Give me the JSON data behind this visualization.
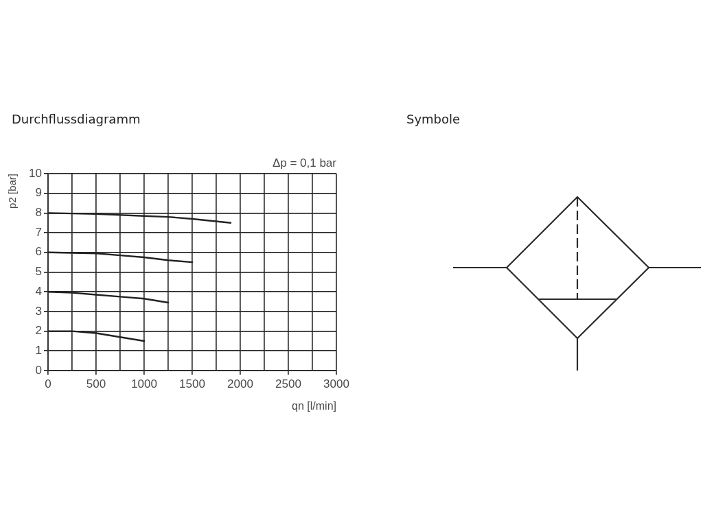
{
  "chart_data": [
    {
      "type": "line",
      "title": "Durchflussdiagramm",
      "xlabel": "qn [l/min]",
      "ylabel": "p2 [bar]",
      "annotations": [
        "Δp = 0,1 bar"
      ],
      "xlim": [
        0,
        3000
      ],
      "xticks": [
        0,
        {
          "value": 250,
          "label": null
        },
        500,
        {
          "value": 750,
          "label": null
        },
        1000,
        {
          "value": 1250,
          "label": null
        },
        1500,
        {
          "value": 1750,
          "label": null
        },
        2000,
        {
          "value": 2250,
          "label": null
        },
        2500,
        {
          "value": 2750,
          "label": null
        },
        3000
      ],
      "ylim": [
        0,
        10
      ],
      "yticks": [
        0,
        1,
        2,
        3,
        4,
        5,
        6,
        7,
        8,
        9,
        10
      ],
      "grid": true,
      "marker": "none",
      "line_style": "solid",
      "series": [
        {
          "color": "#222222",
          "x": [
            0,
            500,
            1000,
            1250,
            1500,
            1900
          ],
          "values": [
            8,
            7.95,
            7.85,
            7.8,
            7.7,
            7.5
          ]
        },
        {
          "color": "#222222",
          "x": [
            0,
            500,
            750,
            1000,
            1250,
            1500
          ],
          "values": [
            6,
            5.95,
            5.85,
            5.75,
            5.6,
            5.5
          ]
        },
        {
          "color": "#222222",
          "x": [
            0,
            250,
            500,
            750,
            1000,
            1250
          ],
          "values": [
            4,
            3.95,
            3.85,
            3.75,
            3.65,
            3.45
          ]
        },
        {
          "color": "#222222",
          "x": [
            0,
            250,
            500,
            750,
            1000
          ],
          "values": [
            2,
            2,
            1.9,
            1.7,
            1.5
          ]
        }
      ]
    },
    {
      "type": "other",
      "title": "Symbole"
    }
  ]
}
